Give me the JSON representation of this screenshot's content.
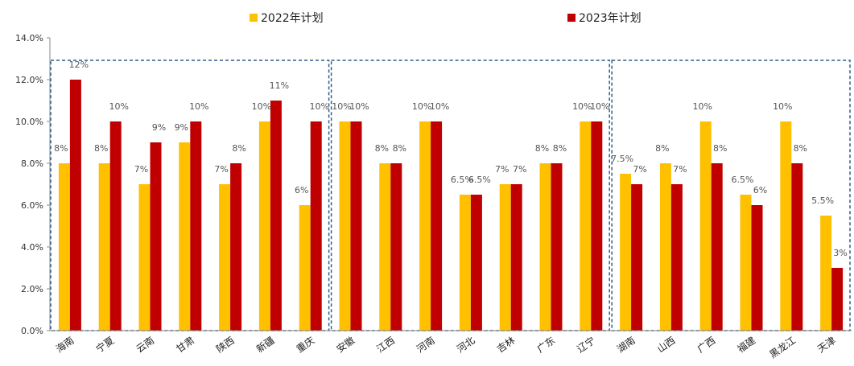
{
  "chart_data": {
    "type": "bar",
    "categories": [
      "海南",
      "宁夏",
      "云南",
      "甘肃",
      "陕西",
      "新疆",
      "重庆",
      "安徽",
      "江西",
      "河南",
      "河北",
      "吉林",
      "广东",
      "辽宁",
      "湖南",
      "山西",
      "广西",
      "福建",
      "黑龙江",
      "天津"
    ],
    "series": [
      {
        "name": "2022年计划",
        "color": "#FFC000",
        "values": [
          8,
          8,
          7,
          9,
          7,
          10,
          6,
          10,
          8,
          10,
          6.5,
          7,
          8,
          10,
          7.5,
          8,
          10,
          6.5,
          10,
          5.5
        ],
        "labels": [
          "8%",
          "8%",
          "7%",
          "9%",
          "7%",
          "10%",
          "6%",
          "10%",
          "8%",
          "10%",
          "6.5%",
          "7%",
          "8%",
          "10%",
          "7.5%",
          "8%",
          "10%",
          "6.5%",
          "10%",
          "5.5%"
        ]
      },
      {
        "name": "2023年计划",
        "color": "#C00000",
        "values": [
          12,
          10,
          9,
          10,
          8,
          11,
          10,
          10,
          8,
          10,
          6.5,
          7,
          8,
          10,
          7,
          7,
          8,
          6,
          8,
          3
        ],
        "labels": [
          "12%",
          "10%",
          "9%",
          "10%",
          "8%",
          "11%",
          "10%",
          "10%",
          "8%",
          "10%",
          "6.5%",
          "7%",
          "8%",
          "10%",
          "7%",
          "7%",
          "8%",
          "6%",
          "8%",
          "3%"
        ]
      }
    ],
    "y_ticks": [
      "0.0%",
      "2.0%",
      "4.0%",
      "6.0%",
      "8.0%",
      "10.0%",
      "12.0%",
      "14.0%"
    ],
    "ylim": [
      0,
      14
    ],
    "groups": [
      [
        0,
        6
      ],
      [
        7,
        13
      ],
      [
        14,
        19
      ]
    ],
    "legend_position": "top-center",
    "grid": false
  }
}
